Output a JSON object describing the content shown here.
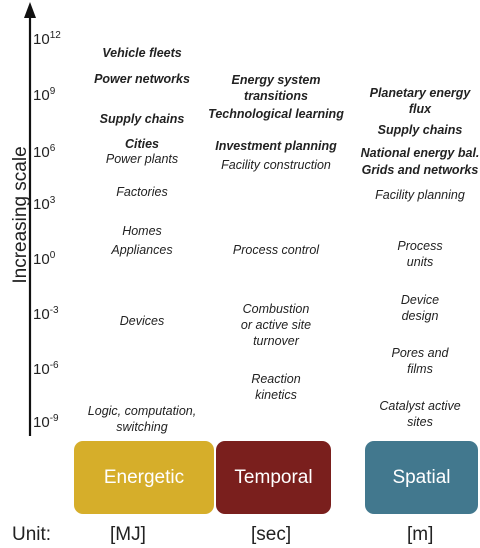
{
  "axis": {
    "title": "Increasing scale"
  },
  "ticks": [
    {
      "base": "10",
      "exp": "12"
    },
    {
      "base": "10",
      "exp": "9"
    },
    {
      "base": "10",
      "exp": "6"
    },
    {
      "base": "10",
      "exp": "3"
    },
    {
      "base": "10",
      "exp": "0"
    },
    {
      "base": "10",
      "exp": "-3"
    },
    {
      "base": "10",
      "exp": "-6"
    },
    {
      "base": "10",
      "exp": "-9"
    }
  ],
  "energetic": {
    "vehicle_fleets": "Vehicle fleets",
    "power_networks": "Power networks",
    "supply_chains": "Supply chains",
    "cities": "Cities",
    "power_plants": "Power plants",
    "factories": "Factories",
    "homes": "Homes",
    "appliances": "Appliances",
    "devices": "Devices",
    "logic_line1": "Logic, computation,",
    "logic_line2": "switching"
  },
  "temporal": {
    "energy_transitions_line1": "Energy system",
    "energy_transitions_line2": "transitions",
    "tech_learning": "Technological learning",
    "investment_planning": "Investment planning",
    "facility_construction": "Facility construction",
    "process_control": "Process control",
    "combustion_line1": "Combustion",
    "combustion_line2": "or active site",
    "combustion_line3": "turnover",
    "reaction_line1": "Reaction",
    "reaction_line2": "kinetics"
  },
  "spatial": {
    "planetary_line1": "Planetary energy",
    "planetary_line2": "flux",
    "supply_chains": "Supply chains",
    "national_energy": "National energy bal.",
    "grids_networks": "Grids and networks",
    "facility_planning": "Facility planning",
    "process_line1": "Process",
    "process_line2": "units",
    "device_line1": "Device",
    "device_line2": "design",
    "pores_line1": "Pores and",
    "pores_line2": "films",
    "catalyst_line1": "Catalyst active",
    "catalyst_line2": "sites"
  },
  "boxes": {
    "energetic": {
      "label": "Energetic",
      "color": "#d6ae2a"
    },
    "temporal": {
      "label": "Temporal",
      "color": "#7a1f1d"
    },
    "spatial": {
      "label": "Spatial",
      "color": "#42788e"
    }
  },
  "units": {
    "label": "Unit:",
    "energetic": "[MJ]",
    "temporal": "[sec]",
    "spatial": "[m]"
  }
}
